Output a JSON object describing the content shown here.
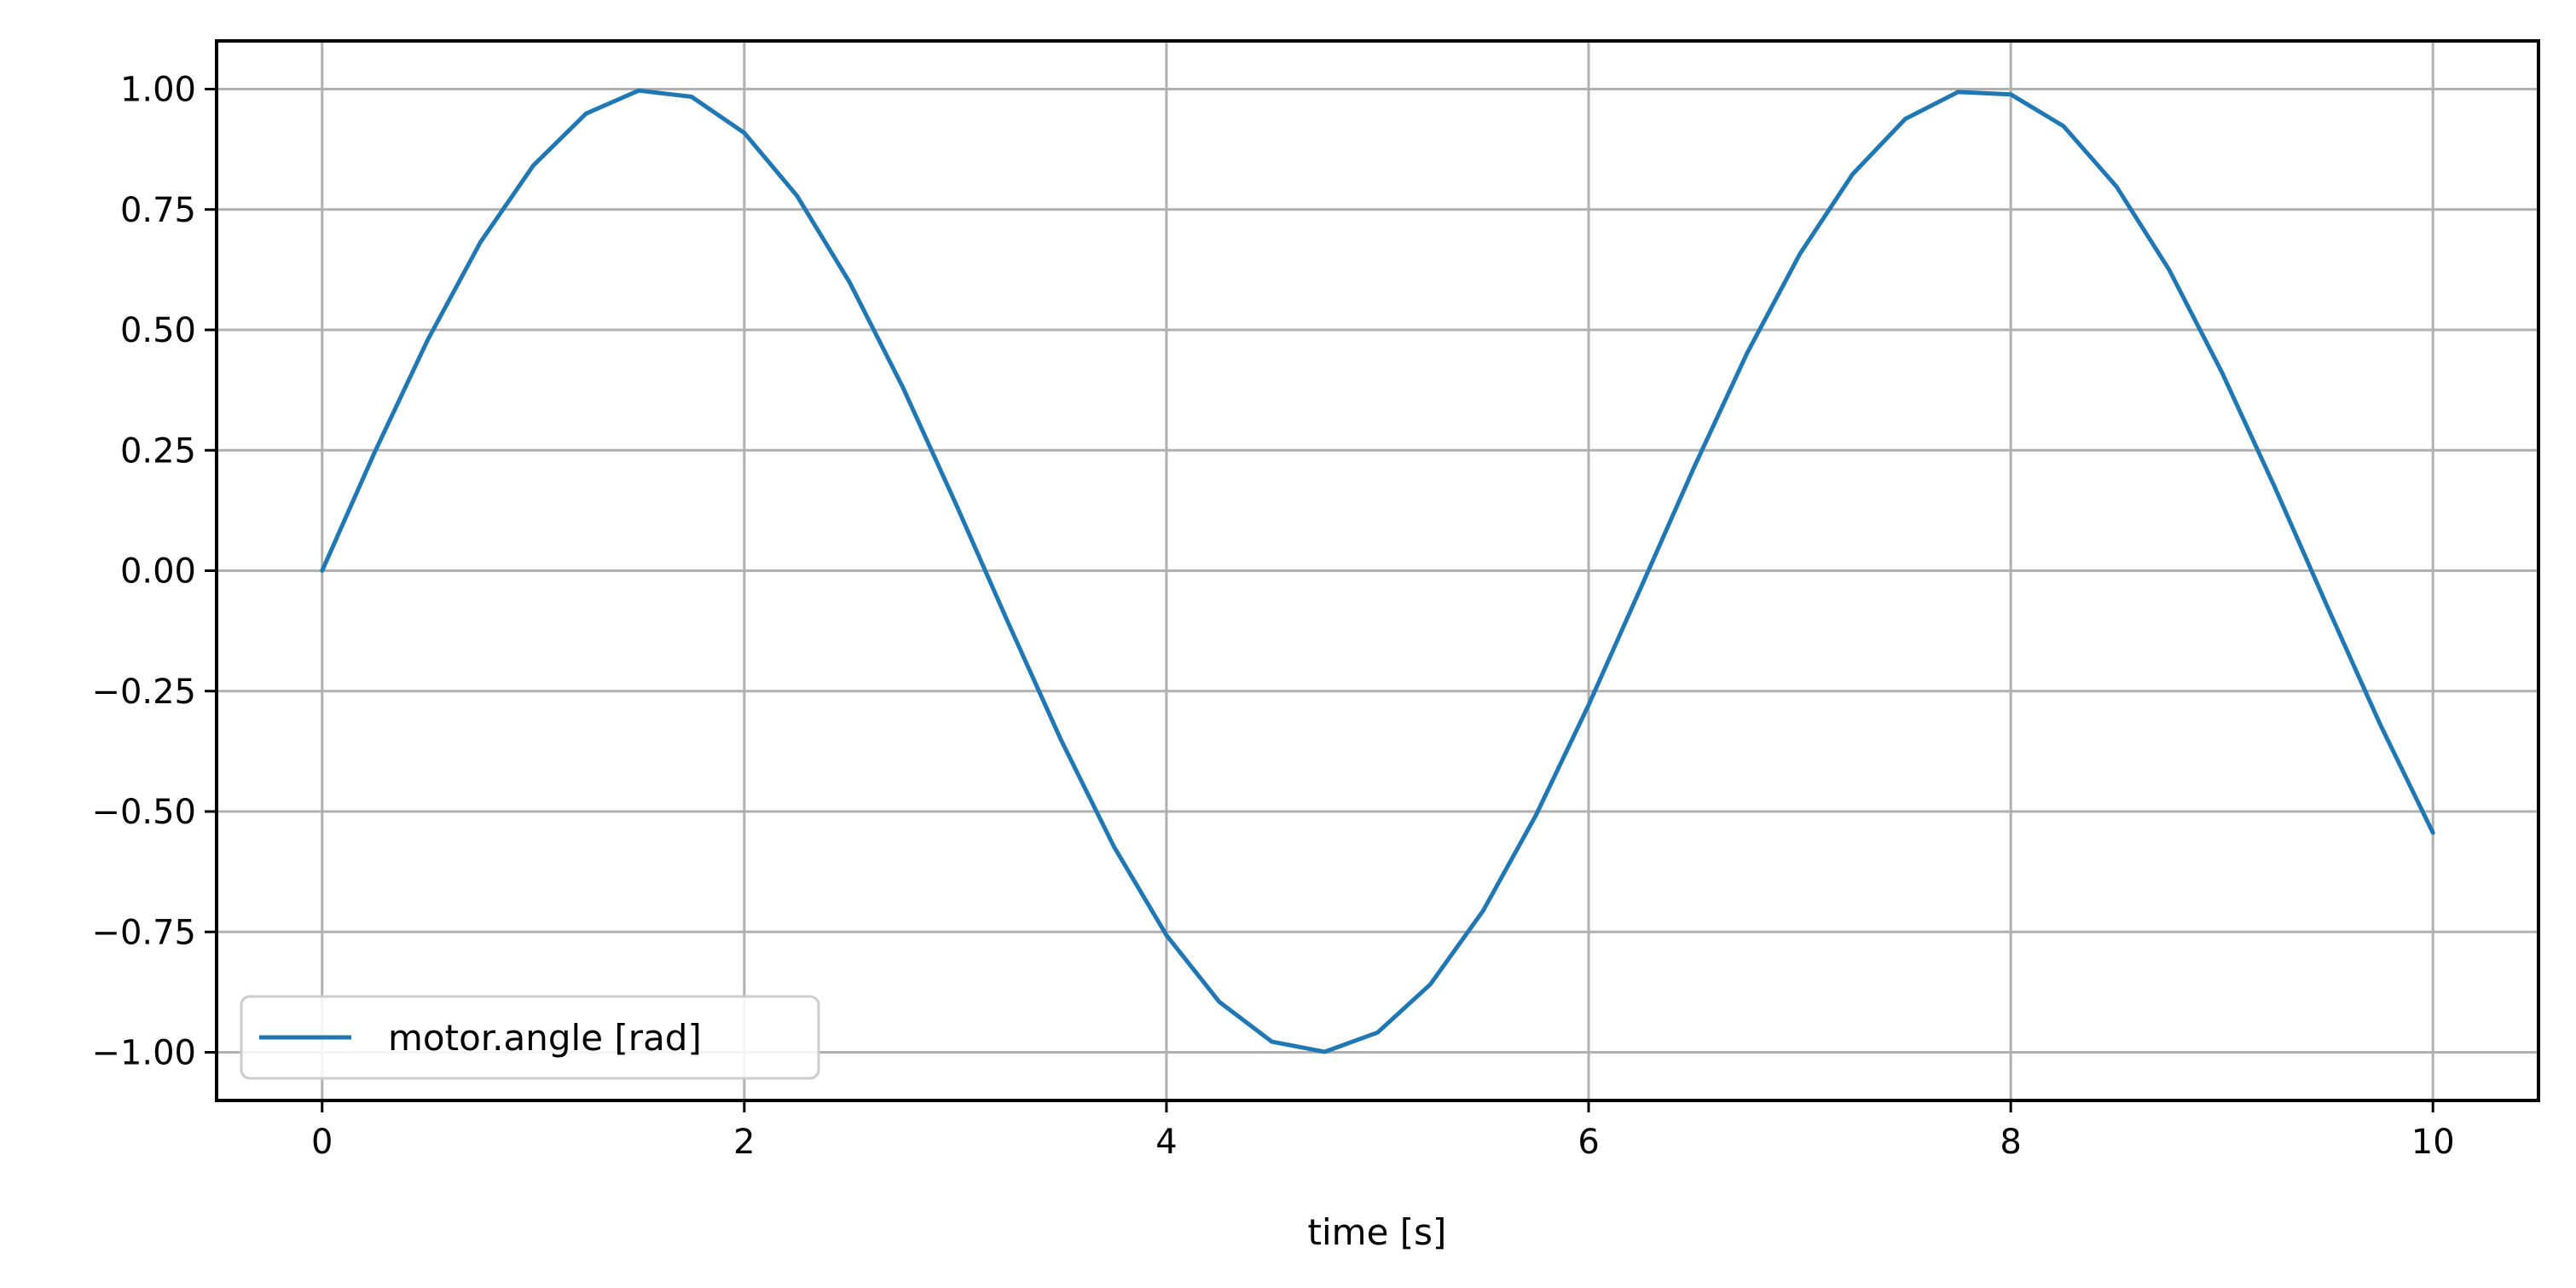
{
  "chart_data": {
    "type": "line",
    "title": "",
    "xlabel": "time [s]",
    "ylabel": "",
    "xlim": [
      -0.5,
      10.5
    ],
    "ylim": [
      -1.1,
      1.1
    ],
    "grid": true,
    "legend_placement": "lower-left",
    "x_ticks": [
      0,
      2,
      4,
      6,
      8,
      10
    ],
    "x_tick_labels": [
      "0",
      "2",
      "4",
      "6",
      "8",
      "10"
    ],
    "y_ticks": [
      1.0,
      0.75,
      0.5,
      0.25,
      0.0,
      -0.25,
      -0.5,
      -0.75,
      -1.0
    ],
    "y_tick_labels": [
      "1.00",
      "0.75",
      "0.50",
      "0.25",
      "0.00",
      "−0.25",
      "−0.50",
      "−0.75",
      "−1.00"
    ],
    "series": [
      {
        "name": "motor.angle [rad]",
        "color": "#1f77b4",
        "x": [
          0,
          0.25,
          0.5,
          0.75,
          1.0,
          1.25,
          1.5,
          1.75,
          2.0,
          2.25,
          2.5,
          2.75,
          3.0,
          3.25,
          3.5,
          3.75,
          4.0,
          4.25,
          4.5,
          4.75,
          5.0,
          5.25,
          5.5,
          5.75,
          6.0,
          6.25,
          6.5,
          6.75,
          7.0,
          7.25,
          7.5,
          7.75,
          8.0,
          8.25,
          8.5,
          8.75,
          9.0,
          9.25,
          9.5,
          9.75,
          10.0
        ],
        "y": [
          0.0,
          0.247,
          0.479,
          0.682,
          0.841,
          0.949,
          0.997,
          0.984,
          0.909,
          0.778,
          0.598,
          0.382,
          0.141,
          -0.108,
          -0.351,
          -0.572,
          -0.757,
          -0.895,
          -0.978,
          -0.999,
          -0.959,
          -0.859,
          -0.706,
          -0.508,
          -0.279,
          -0.033,
          0.215,
          0.451,
          0.657,
          0.823,
          0.938,
          0.994,
          0.989,
          0.923,
          0.798,
          0.625,
          0.412,
          0.174,
          -0.075,
          -0.319,
          -0.544
        ]
      }
    ]
  }
}
